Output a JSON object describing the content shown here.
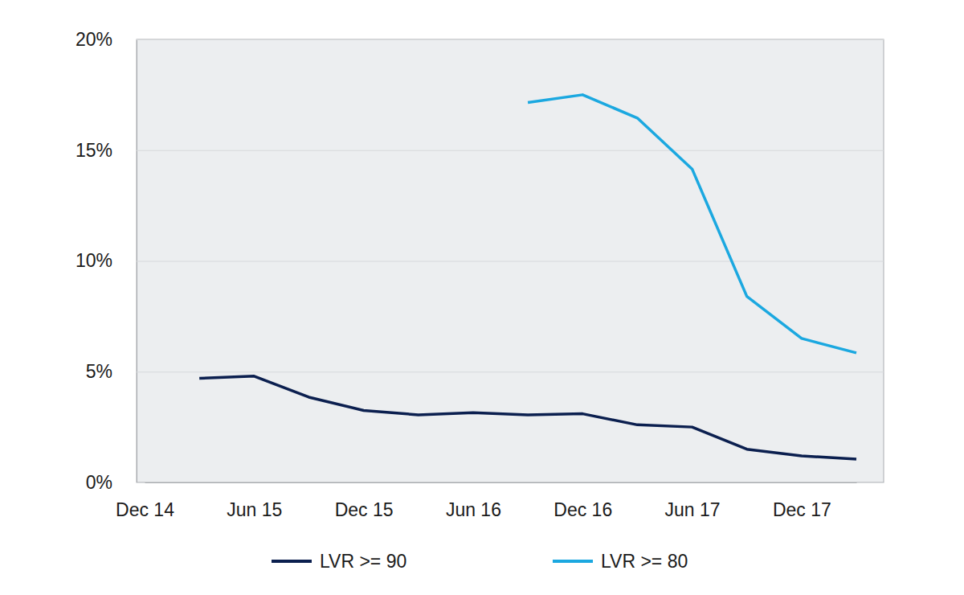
{
  "chart_data": {
    "type": "line",
    "categories": [
      "Dec 14",
      null,
      "Jun 15",
      null,
      "Dec 15",
      null,
      "Jun 16",
      null,
      "Dec 16",
      null,
      "Jun 17",
      null,
      "Dec 17",
      null
    ],
    "series": [
      {
        "name": "LVR >= 90",
        "color": "#0b1f4f",
        "values": [
          null,
          4.7,
          4.8,
          3.85,
          3.25,
          3.05,
          3.15,
          3.05,
          3.1,
          2.6,
          2.5,
          1.5,
          1.2,
          1.05
        ]
      },
      {
        "name": "LVR >= 80",
        "color": "#1ba8e0",
        "values": [
          null,
          null,
          null,
          null,
          null,
          null,
          null,
          17.15,
          17.5,
          16.45,
          14.15,
          8.4,
          6.5,
          5.85
        ]
      }
    ],
    "ylim": [
      0,
      20
    ],
    "yticks": [
      {
        "value": 0,
        "label": "0%"
      },
      {
        "value": 5,
        "label": "5%"
      },
      {
        "value": 10,
        "label": "10%"
      },
      {
        "value": 15,
        "label": "15%"
      },
      {
        "value": 20,
        "label": "20%"
      }
    ],
    "grid": true,
    "legend": "bottom"
  }
}
